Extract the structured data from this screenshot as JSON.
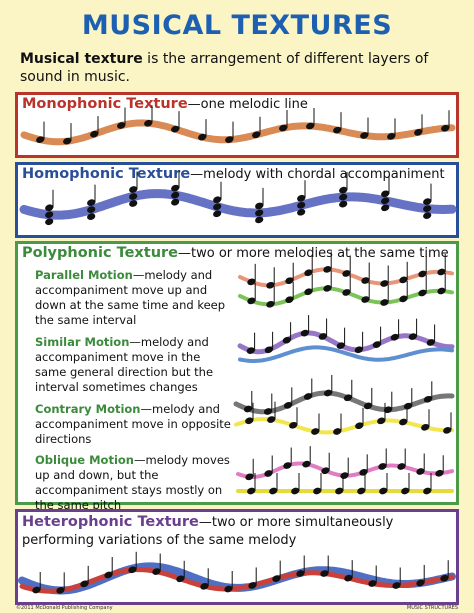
{
  "title": "MUSICAL TEXTURES",
  "intro": {
    "term": "Musical texture",
    "text": " is the arrangement of different layers of sound in music."
  },
  "sections": [
    {
      "name": "Monophonic Texture",
      "text": "—one melodic line"
    },
    {
      "name": "Homophonic Texture",
      "text": "—melody with chordal accompaniment"
    },
    {
      "name": "Polyphonic Texture",
      "text": "—two or more melodies at the same time",
      "items": [
        {
          "name": "Parallel Motion",
          "text": "—melody and accompaniment move up and down at the same time and keep the same interval"
        },
        {
          "name": "Similar Motion",
          "text": "—melody and accompaniment move in the same general direction but the interval sometimes changes"
        },
        {
          "name": "Contrary Motion",
          "text": "—melody and accompaniment move in opposite directions"
        },
        {
          "name": "Oblique Motion",
          "text": "—melody moves up and down, but the accompaniment stays mostly on the same pitch"
        }
      ]
    },
    {
      "name": "Heterophonic Texture",
      "text": "—two or more simultaneously performing variations of the same melody"
    }
  ],
  "footer": {
    "copyright": "©2011 McDonald Publishing Company",
    "series": "MUSIC STRUCTURES"
  }
}
